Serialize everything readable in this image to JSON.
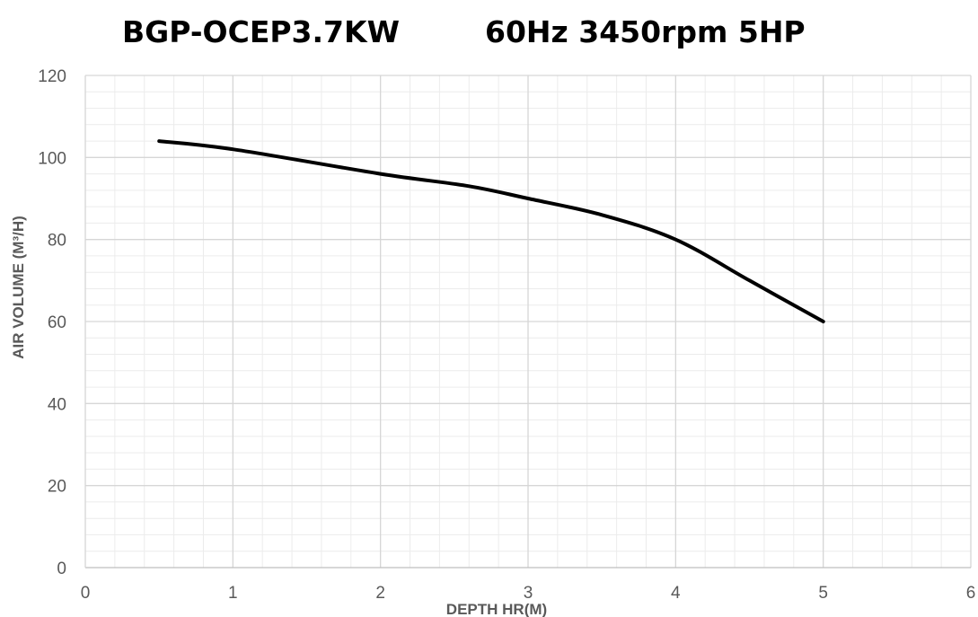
{
  "title": {
    "left": "BGP-OCEP3.7KW",
    "right": "60Hz 3450rpm 5HP"
  },
  "chart_data": {
    "type": "line",
    "title": "BGP-OCEP3.7KW 60Hz 3450rpm 5HP",
    "xlabel": "DEPTH HR(M)",
    "ylabel": "AIR VOLUME (M³/H)",
    "xlim": [
      0,
      6
    ],
    "ylim": [
      0,
      120
    ],
    "x_ticks": [
      0,
      1,
      2,
      3,
      4,
      5,
      6
    ],
    "y_ticks": [
      0,
      20,
      40,
      60,
      80,
      100,
      120
    ],
    "x_tick_labels": [
      "0",
      "1",
      "2",
      "3",
      "4",
      "5",
      "6"
    ],
    "y_tick_labels": [
      "0",
      "20",
      "40",
      "60",
      "80",
      "100",
      "120"
    ],
    "grid": true,
    "minor_grid": true,
    "legend": "none",
    "series": [
      {
        "color": "#000000",
        "x": [
          0.5,
          1,
          2,
          2.6,
          3,
          3.5,
          4,
          4.5,
          5
        ],
        "y": [
          104,
          102,
          96,
          93,
          90,
          86,
          80,
          70,
          60
        ]
      }
    ]
  }
}
